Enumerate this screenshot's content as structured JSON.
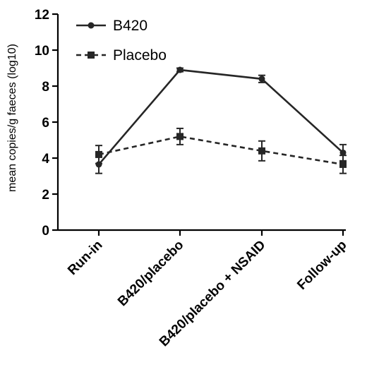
{
  "chart_data": {
    "type": "line",
    "categories": [
      "Run-in",
      "B420/placebo",
      "B420/placebo + NSAID",
      "Follow-up"
    ],
    "ylabel": "mean copies/g faeces (log10)",
    "ylim": [
      0,
      12
    ],
    "yticks": [
      0,
      2,
      4,
      6,
      8,
      10,
      12
    ],
    "grid": false,
    "legend": "top-left",
    "series": [
      {
        "name": "B420",
        "values": [
          3.65,
          8.9,
          8.4,
          4.3
        ],
        "error": [
          0.5,
          0.1,
          0.2,
          0.45
        ],
        "line_style": "solid",
        "marker": "circle",
        "color": "#262626"
      },
      {
        "name": "Placebo",
        "values": [
          4.2,
          5.2,
          4.4,
          3.65
        ],
        "error": [
          0.5,
          0.45,
          0.55,
          0.5
        ],
        "line_style": "dashed",
        "marker": "square",
        "color": "#262626"
      }
    ]
  }
}
